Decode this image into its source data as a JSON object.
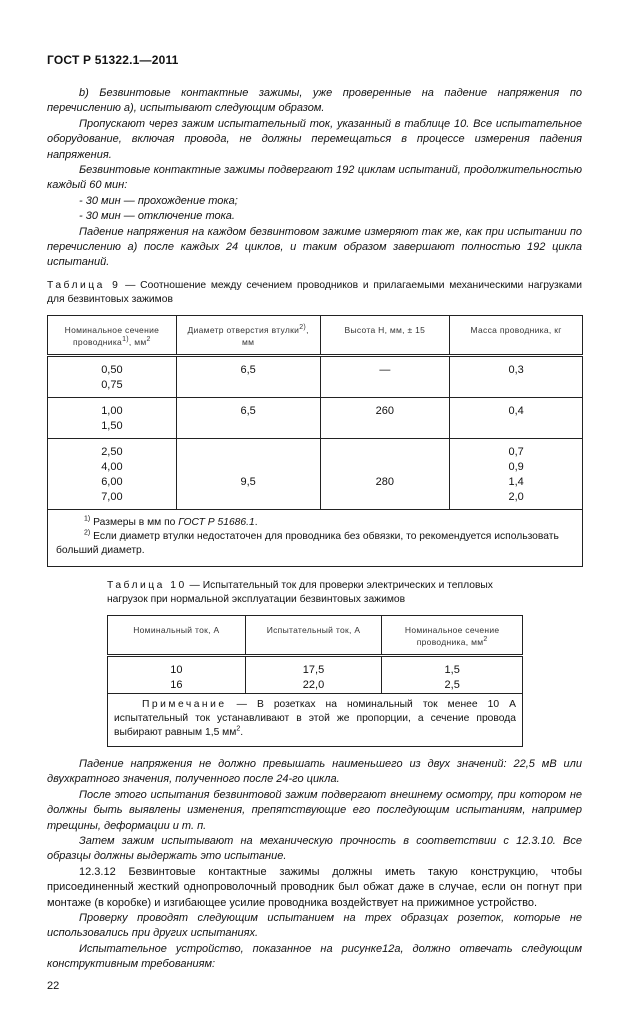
{
  "header": {
    "doc_id": "ГОСТ Р 51322.1—2011"
  },
  "top_paragraphs": [
    "b) Безвинтовые контактные зажимы, уже проверенные на падение напряжения по перечислению а), испытывают следующим образом.",
    "Пропускают через зажим испытательный ток, указанный в таблице 10. Все испытательное оборудование, включая провода, не должны перемещаться в процессе измерения падения напряжения.",
    "Безвинтовые контактные зажимы подвергают 192 циклам испытаний, продолжительностью каждый 60 мин:",
    "- 30 мин — прохождение тока;",
    "- 30 мин — отключение тока.",
    "Падение напряжения на каждом безвинтовом зажиме измеряют так же, как при испытании по перечислению а) после каждых 24 циклов, и таким образом завершают полностью 192 цикла испытаний."
  ],
  "table9": {
    "label": "Таблица 9",
    "caption": " — Соотношение между сечением проводников и прилагаемыми механическими нагрузками для безвинтовых зажимов",
    "headers": [
      {
        "text": "Номинальное сечение проводника",
        "sup": "1)",
        "tail": ", мм",
        "sup2": "2"
      },
      {
        "text": "Диаметр отверстия втулки",
        "sup": "2)",
        "tail": ", мм"
      },
      {
        "text": "Высота H, мм, ± 15"
      },
      {
        "text": "Масса проводника, кг"
      }
    ],
    "rows": [
      {
        "section": [
          "0,50",
          "0,75"
        ],
        "diameter": "6,5",
        "height": "—",
        "mass": [
          "0,3"
        ]
      },
      {
        "section": [
          "1,00",
          "1,50"
        ],
        "diameter": "6,5",
        "height": "260",
        "mass": [
          "0,4"
        ]
      },
      {
        "section": [
          "2,50",
          "4,00",
          "6,00",
          "7,00"
        ],
        "diameter": "9,5",
        "height": "280",
        "mass": [
          "0,7",
          "0,9",
          "1,4",
          "2,0"
        ]
      }
    ],
    "footnotes": [
      {
        "mark": "1)",
        "text": " Размеры в мм  по ",
        "ref": "ГОСТ Р 51686.1",
        "end": "."
      },
      {
        "mark": "2)",
        "text": " Если диаметр втулки недостаточен для проводника без обвязки, то рекомендуется использовать больший диаметр."
      }
    ]
  },
  "table10": {
    "label": "Таблица 10",
    "caption": " — Испытательный ток для проверки электрических и тепловых нагрузок при нормальной эксплуатации безвинтовых зажимов",
    "headers": [
      "Номинальный ток, А",
      "Испытательный ток, А",
      "Номинальное сечение проводника, мм"
    ],
    "header_sup": "2",
    "rows": [
      [
        "10",
        "17,5",
        "1,5"
      ],
      [
        "16",
        "22,0",
        "2,5"
      ]
    ],
    "note_label": "Примечание",
    "note_text": " — В розетках на номинальный ток менее 10 А испытательный ток устанавливают в этой же пропорции, а сечение провода выбирают равным 1,5 мм",
    "note_sup": "2",
    "note_end": "."
  },
  "bottom_paragraphs": [
    {
      "text": "Падение напряжения не должно превышать наименьшего из двух значений: 22,5 мВ или двухкратного значения, полученного после 24-го цикла.",
      "italic": true
    },
    {
      "text": "После этого испытания безвинтовой зажим подвергают внешнему осмотру, при котором не должны быть выявлены изменения, препятствующие его последующим испытаниям, например трещины, деформации и т. п.",
      "italic": true
    },
    {
      "text": "Затем зажим испытывают на механическую прочность в соответствии с  12.3.10. Все образцы должны выдержать это испытание.",
      "italic": true
    },
    {
      "text": "12.3.12 Безвинтовые контактные зажимы должны иметь такую конструкцию, чтобы  присоединенный жесткий  однопроволочный  проводник  был  обжат даже в случае, если он погнут при монтаже (в коробке) и изгибающее усилие проводника воздействует на прижимное устройство.",
      "italic": false
    },
    {
      "text": "Проверку проводят следующим испытанием на трех образцах розеток, которые не использовались при других испытаниях.",
      "italic": true
    },
    {
      "text": "Испытательное устройство, показанное на рисунке12а, должно отвечать следующим конструктивным требованиям:",
      "italic": true
    }
  ],
  "page_number": "22"
}
